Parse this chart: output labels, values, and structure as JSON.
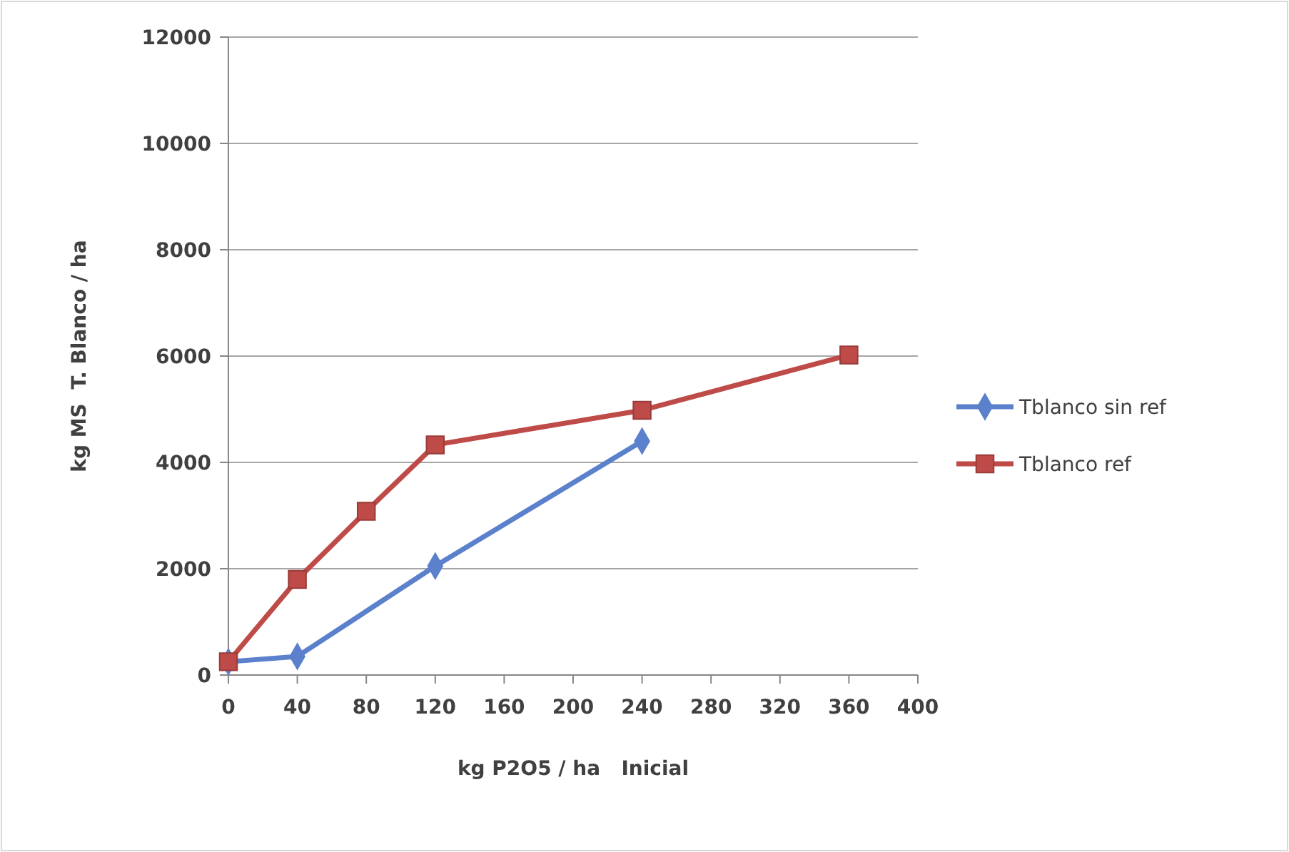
{
  "chart_data": {
    "type": "line",
    "xlabel": "kg P2O5 / ha   Inicial",
    "ylabel": "kg MS  T. Blanco / ha",
    "xlim": [
      0,
      400
    ],
    "xticks": [
      0,
      40,
      80,
      120,
      160,
      200,
      240,
      280,
      320,
      360,
      400
    ],
    "ylim": [
      0,
      12000
    ],
    "yticks": [
      0,
      2000,
      4000,
      6000,
      8000,
      10000,
      12000
    ],
    "grid": "y",
    "legend": "right",
    "line_style": "solid",
    "series": [
      {
        "name": "Tblanco sin ref",
        "color": "#5b80cc",
        "marker": "diamond",
        "x": [
          0,
          40,
          120,
          240
        ],
        "values": [
          250,
          350,
          2050,
          4400
        ]
      },
      {
        "name": "Tblanco ref",
        "color": "#be4b48",
        "marker": "square",
        "x": [
          0,
          40,
          80,
          120,
          240,
          360
        ],
        "values": [
          250,
          1800,
          3080,
          4330,
          4980,
          6020
        ]
      }
    ]
  }
}
